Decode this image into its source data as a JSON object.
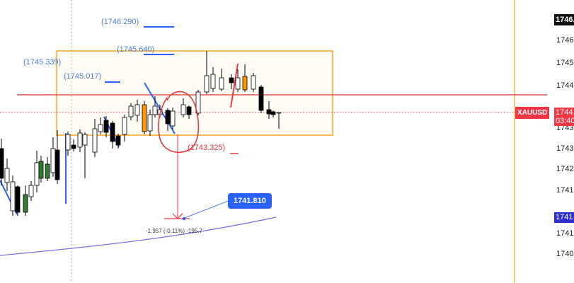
{
  "symbol": "XAUUSD",
  "price_axis": {
    "labels": [
      "1746.",
      "1745.",
      "1744.",
      "1743.",
      "1743.",
      "1742.",
      "1741.",
      "1741.",
      "1740."
    ],
    "top_badge": "1746.",
    "current_price": "1744.",
    "countdown": "03:40",
    "ma_badge": "1741.",
    "last_price_color": "#f23645",
    "ma_color": "#2f2fcf"
  },
  "annotations": {
    "high_1": "(1746.290)",
    "high_2": "(1745.640)",
    "high_3": "(1745.339)",
    "high_4": "(1745.017)",
    "low_1": "(1743.325)",
    "target": "1741.810",
    "measure": "-1.957 (-0.11%) -195.7"
  },
  "colors": {
    "range_box": "#f5a623",
    "resistance_line": "#d32f2f",
    "trend_lines": "#2962ff",
    "moving_average": "#7b6fd8",
    "vertical_marker": "#f5a623",
    "bull_candle": "#ffffff",
    "bear_candle": "#000000",
    "green_candle": "#2e7d32",
    "orange_candle": "#ff9800"
  }
}
